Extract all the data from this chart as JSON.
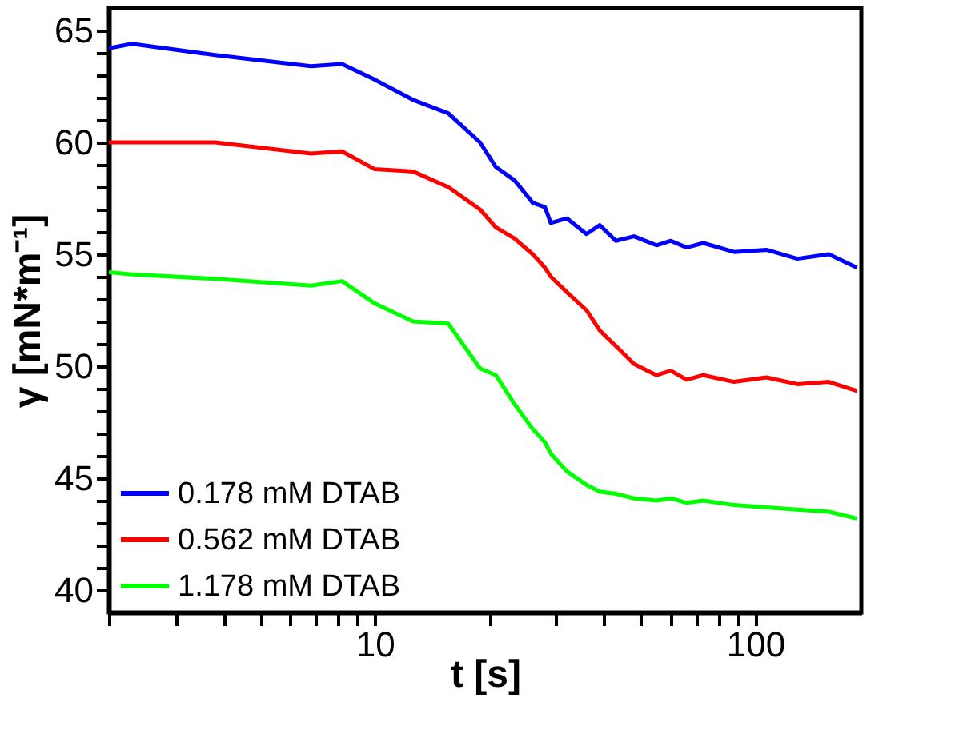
{
  "chart_data": {
    "type": "line",
    "xlabel": "t [s]",
    "ylabel": "γ [mN*m⁻¹]",
    "log": "x",
    "x": [
      2,
      2.3,
      3.8,
      6.8,
      8.2,
      10,
      12.6,
      15.6,
      18.9,
      20.8,
      23.3,
      26,
      28,
      29,
      32,
      36,
      39,
      43,
      48,
      55,
      60,
      66,
      73,
      88,
      107,
      129,
      156,
      185
    ],
    "series": [
      {
        "name": "0.178 mM DTAB",
        "color": "#0000ff",
        "values": [
          64.2,
          64.4,
          63.9,
          63.4,
          63.5,
          62.8,
          61.9,
          61.3,
          60.0,
          58.9,
          58.3,
          57.3,
          57.1,
          56.4,
          56.6,
          55.9,
          56.3,
          55.6,
          55.8,
          55.4,
          55.6,
          55.3,
          55.5,
          55.1,
          55.2,
          54.8,
          55.0,
          54.4
        ]
      },
      {
        "name": "0.562 mM DTAB",
        "color": "#ff0000",
        "values": [
          60.0,
          60.0,
          60.0,
          59.5,
          59.6,
          58.8,
          58.7,
          58.0,
          57.0,
          56.2,
          55.7,
          55.0,
          54.4,
          54.0,
          53.3,
          52.5,
          51.6,
          50.9,
          50.1,
          49.6,
          49.8,
          49.4,
          49.6,
          49.3,
          49.5,
          49.2,
          49.3,
          48.9
        ]
      },
      {
        "name": "1.178 mM DTAB",
        "color": "#00ff00",
        "values": [
          54.2,
          54.1,
          53.9,
          53.6,
          53.8,
          52.8,
          52.0,
          51.9,
          49.9,
          49.6,
          48.3,
          47.2,
          46.6,
          46.1,
          45.3,
          44.7,
          44.4,
          44.3,
          44.1,
          44.0,
          44.1,
          43.9,
          44.0,
          43.8,
          43.7,
          43.6,
          43.5,
          43.2
        ]
      }
    ],
    "xlim": [
      2,
      190
    ],
    "xticks": [
      {
        "value": 2,
        "label": null
      },
      {
        "value": 3,
        "label": null
      },
      {
        "value": 4,
        "label": null
      },
      {
        "value": 5,
        "label": null
      },
      {
        "value": 6,
        "label": null
      },
      {
        "value": 7,
        "label": null
      },
      {
        "value": 8,
        "label": null
      },
      {
        "value": 9,
        "label": null
      },
      10,
      {
        "value": 20,
        "label": null
      },
      {
        "value": 30,
        "label": null
      },
      {
        "value": 40,
        "label": null
      },
      {
        "value": 50,
        "label": null
      },
      {
        "value": 60,
        "label": null
      },
      {
        "value": 70,
        "label": null
      },
      {
        "value": 80,
        "label": null
      },
      {
        "value": 90,
        "label": null
      },
      100
    ],
    "ylim": [
      39,
      66
    ],
    "yticks": [
      40,
      {
        "value": 41,
        "label": null
      },
      {
        "value": 42,
        "label": null
      },
      {
        "value": 43,
        "label": null
      },
      {
        "value": 44,
        "label": null
      },
      45,
      {
        "value": 46,
        "label": null
      },
      {
        "value": 47,
        "label": null
      },
      {
        "value": 48,
        "label": null
      },
      {
        "value": 49,
        "label": null
      },
      50,
      {
        "value": 51,
        "label": null
      },
      {
        "value": 52,
        "label": null
      },
      {
        "value": 53,
        "label": null
      },
      {
        "value": 54,
        "label": null
      },
      55,
      {
        "value": 56,
        "label": null
      },
      {
        "value": 57,
        "label": null
      },
      {
        "value": 58,
        "label": null
      },
      {
        "value": 59,
        "label": null
      },
      60,
      {
        "value": 61,
        "label": null
      },
      {
        "value": 62,
        "label": null
      },
      {
        "value": 63,
        "label": null
      },
      {
        "value": 64,
        "label": null
      },
      65
    ],
    "grid": false,
    "legend": "bottom left",
    "line_style": "solid",
    "marker": "none"
  }
}
